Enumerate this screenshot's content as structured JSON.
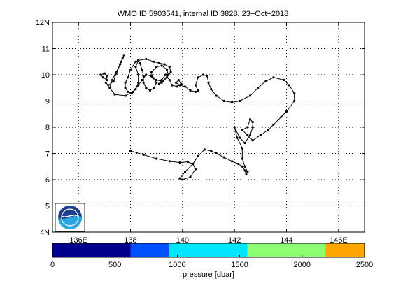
{
  "chart_data": {
    "type": "line",
    "title": "WMO ID 5903541, internal ID 3828, 23−Oct−2018",
    "xlabel": "",
    "ylabel": "",
    "xlim": [
      135.0,
      147.0
    ],
    "ylim": [
      4.0,
      12.0
    ],
    "x_ticks": [
      {
        "value": 136,
        "label": "136E"
      },
      {
        "value": 138,
        "label": "138"
      },
      {
        "value": 140,
        "label": "140"
      },
      {
        "value": 142,
        "label": "142"
      },
      {
        "value": 144,
        "label": "144"
      },
      {
        "value": 146,
        "label": "146E"
      }
    ],
    "y_ticks": [
      {
        "value": 4,
        "label": "4N"
      },
      {
        "value": 5,
        "label": "5"
      },
      {
        "value": 6,
        "label": "6"
      },
      {
        "value": 7,
        "label": "7"
      },
      {
        "value": 8,
        "label": "8"
      },
      {
        "value": 9,
        "label": "9"
      },
      {
        "value": 10,
        "label": "10"
      },
      {
        "value": 11,
        "label": "11"
      },
      {
        "value": 12,
        "label": "12N"
      }
    ],
    "grid": true,
    "trajectory": [
      [
        138.0,
        7.1
      ],
      [
        138.5,
        6.95
      ],
      [
        139.0,
        6.8
      ],
      [
        139.5,
        6.7
      ],
      [
        139.9,
        6.65
      ],
      [
        140.2,
        6.68
      ],
      [
        140.4,
        6.6
      ],
      [
        140.5,
        6.4
      ],
      [
        140.3,
        6.1
      ],
      [
        140.0,
        6.0
      ],
      [
        139.9,
        6.05
      ],
      [
        140.1,
        6.3
      ],
      [
        140.4,
        6.6
      ],
      [
        140.6,
        6.9
      ],
      [
        140.85,
        7.15
      ],
      [
        141.1,
        7.1
      ],
      [
        141.3,
        7.0
      ],
      [
        141.6,
        6.85
      ],
      [
        141.9,
        6.7
      ],
      [
        142.15,
        6.6
      ],
      [
        142.3,
        6.5
      ],
      [
        142.4,
        6.35
      ],
      [
        142.45,
        6.2
      ],
      [
        142.5,
        6.3
      ],
      [
        142.4,
        6.5
      ],
      [
        142.3,
        6.8
      ],
      [
        142.3,
        7.2
      ],
      [
        142.1,
        7.6
      ],
      [
        142.0,
        8.0
      ],
      [
        142.2,
        7.6
      ],
      [
        142.4,
        7.4
      ],
      [
        142.6,
        7.7
      ],
      [
        142.7,
        8.0
      ],
      [
        142.7,
        8.2
      ],
      [
        142.6,
        8.3
      ],
      [
        142.5,
        8.0
      ],
      [
        142.3,
        7.9
      ],
      [
        142.5,
        7.7
      ],
      [
        142.7,
        7.5
      ],
      [
        143.0,
        7.7
      ],
      [
        143.3,
        7.9
      ],
      [
        143.5,
        8.1
      ],
      [
        143.8,
        8.4
      ],
      [
        144.0,
        8.6
      ],
      [
        144.3,
        9.0
      ],
      [
        144.3,
        9.3
      ],
      [
        144.1,
        9.6
      ],
      [
        143.9,
        9.8
      ],
      [
        143.5,
        9.9
      ],
      [
        143.2,
        9.75
      ],
      [
        142.9,
        9.5
      ],
      [
        142.6,
        9.2
      ],
      [
        142.2,
        9.0
      ],
      [
        141.9,
        8.95
      ],
      [
        141.6,
        9.0
      ],
      [
        141.3,
        9.2
      ],
      [
        141.1,
        9.45
      ],
      [
        141.0,
        9.7
      ],
      [
        140.95,
        9.95
      ],
      [
        140.8,
        10.0
      ],
      [
        140.6,
        9.9
      ],
      [
        140.5,
        9.6
      ],
      [
        140.6,
        9.4
      ],
      [
        140.5,
        9.35
      ],
      [
        140.3,
        9.4
      ],
      [
        140.1,
        9.55
      ],
      [
        139.9,
        9.6
      ],
      [
        139.75,
        9.7
      ],
      [
        139.85,
        9.8
      ],
      [
        139.95,
        9.65
      ],
      [
        139.8,
        9.55
      ],
      [
        139.6,
        9.6
      ],
      [
        139.5,
        9.8
      ],
      [
        139.35,
        10.0
      ],
      [
        139.2,
        9.8
      ],
      [
        139.1,
        9.65
      ],
      [
        139.2,
        9.7
      ],
      [
        139.45,
        10.0
      ],
      [
        139.4,
        10.2
      ],
      [
        139.2,
        10.35
      ],
      [
        139.0,
        10.3
      ],
      [
        138.8,
        10.1
      ],
      [
        138.85,
        9.9
      ],
      [
        139.0,
        9.7
      ],
      [
        138.9,
        9.5
      ],
      [
        138.75,
        9.4
      ],
      [
        138.6,
        9.5
      ],
      [
        138.5,
        9.7
      ],
      [
        138.5,
        9.95
      ],
      [
        138.45,
        10.2
      ],
      [
        138.35,
        10.45
      ],
      [
        138.3,
        10.55
      ],
      [
        138.2,
        10.5
      ],
      [
        138.0,
        10.2
      ],
      [
        137.9,
        9.9
      ],
      [
        137.8,
        9.7
      ],
      [
        137.8,
        9.5
      ],
      [
        137.9,
        9.35
      ],
      [
        138.05,
        9.3
      ],
      [
        138.2,
        9.45
      ],
      [
        138.3,
        9.7
      ],
      [
        138.3,
        10.0
      ],
      [
        138.2,
        10.3
      ],
      [
        138.3,
        10.55
      ],
      [
        138.6,
        10.6
      ],
      [
        138.9,
        10.5
      ],
      [
        139.1,
        10.45
      ],
      [
        139.3,
        10.4
      ],
      [
        139.5,
        10.3
      ],
      [
        139.55,
        10.1
      ],
      [
        139.4,
        9.9
      ],
      [
        139.25,
        9.75
      ],
      [
        139.0,
        9.8
      ],
      [
        138.8,
        9.95
      ],
      [
        138.6,
        10.0
      ],
      [
        138.45,
        9.8
      ],
      [
        138.3,
        9.6
      ],
      [
        138.1,
        9.35
      ],
      [
        137.8,
        9.2
      ],
      [
        137.4,
        9.25
      ],
      [
        137.2,
        9.5
      ],
      [
        137.3,
        9.8
      ],
      [
        137.45,
        10.1
      ],
      [
        137.6,
        10.4
      ],
      [
        137.7,
        10.65
      ],
      [
        137.75,
        10.75
      ],
      [
        137.65,
        10.5
      ],
      [
        137.45,
        10.05
      ],
      [
        137.35,
        9.75
      ],
      [
        137.15,
        9.6
      ],
      [
        137.05,
        9.7
      ],
      [
        137.1,
        9.95
      ],
      [
        137.0,
        10.05
      ],
      [
        136.85,
        10.0
      ],
      [
        136.95,
        9.9
      ],
      [
        137.1,
        9.8
      ]
    ],
    "colorbar": {
      "label": "pressure [dbar]",
      "range": [
        0,
        2500
      ],
      "ticks": [
        0,
        500,
        1000,
        1500,
        2000,
        2500
      ],
      "segments": [
        {
          "from": 0,
          "to": 625,
          "color": "#00008f"
        },
        {
          "from": 625,
          "to": 937.5,
          "color": "#0050ff"
        },
        {
          "from": 937.5,
          "to": 1562.5,
          "color": "#00e5ff"
        },
        {
          "from": 1562.5,
          "to": 2187.5,
          "color": "#8cff73"
        },
        {
          "from": 2187.5,
          "to": 2500,
          "color": "#ffa500"
        }
      ]
    },
    "line_color": "#000000",
    "marker_color": "#000000"
  },
  "logo": {
    "text": "NOAA",
    "colors": {
      "dark": "#1d3f8f",
      "light": "#2aa7e0"
    }
  }
}
